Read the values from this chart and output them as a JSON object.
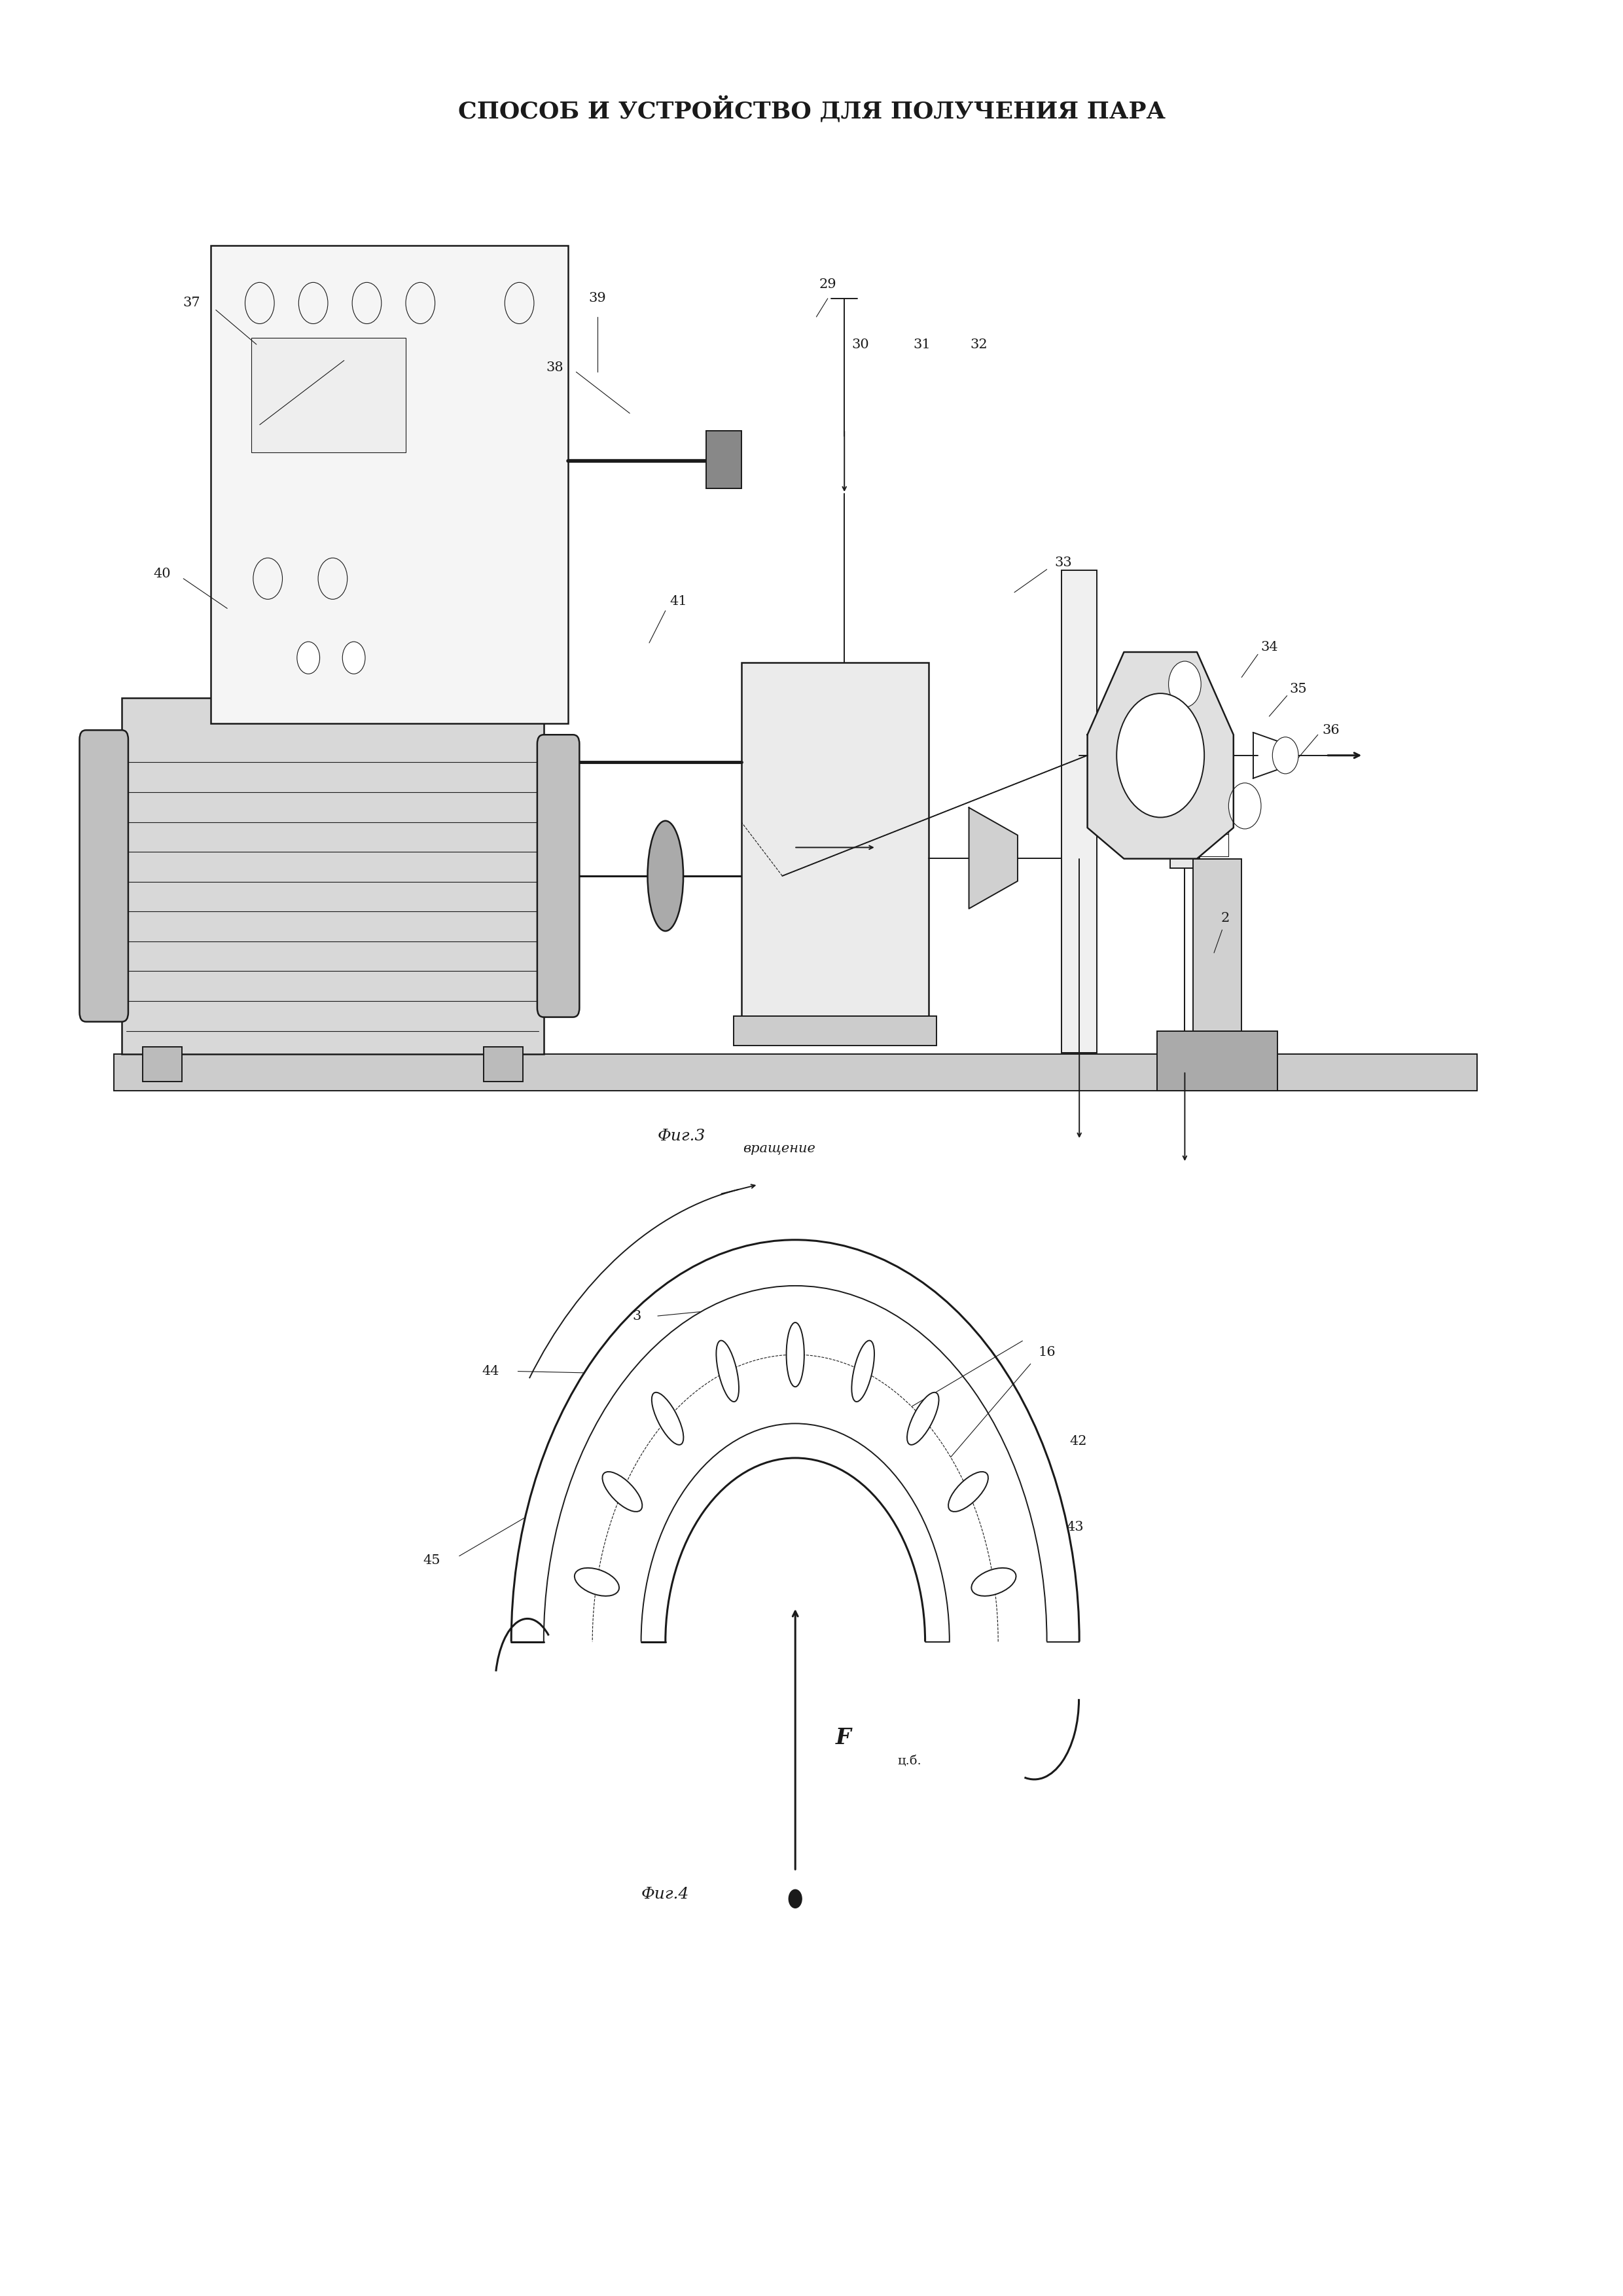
{
  "title": "СПОСОБ И УСТРОЙСТВО ДЛЯ ПОЛУЧЕНИЯ ПАРА",
  "fig_width": 24.8,
  "fig_height": 35.07,
  "bg_color": "#ffffff",
  "line_color": "#1a1a1a",
  "fig3_label": "Фиг.3",
  "fig4_label": "Фиг.4",
  "rotation_label": "вращение",
  "force_label": "F",
  "force_subscript": "ц.б."
}
